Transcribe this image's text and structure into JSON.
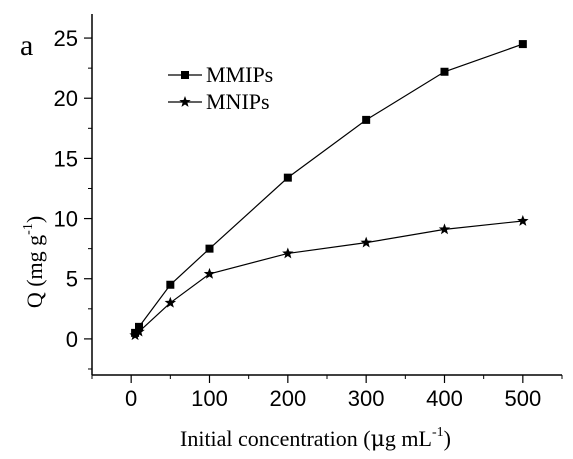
{
  "chart_data": {
    "type": "line",
    "panel_label": "a",
    "xlabel_main": "Initial concentration (",
    "xlabel_unit_mu": "μ",
    "xlabel_unit_rest": "g mL",
    "xlabel_unit_sup": "-1",
    "xlabel_close": ")",
    "ylabel_main": "Q (mg g",
    "ylabel_sup": "-1",
    "ylabel_close": ")",
    "xlim": [
      -50,
      550
    ],
    "ylim": [
      -3,
      27
    ],
    "xticks": [
      0,
      100,
      200,
      300,
      400,
      500
    ],
    "yticks": [
      0,
      5,
      10,
      15,
      20,
      25
    ],
    "legend_position": "top-left",
    "series": [
      {
        "name": "MMIPs",
        "marker": "square",
        "color": "#000000",
        "x": [
          5,
          10,
          50,
          100,
          200,
          300,
          400,
          500
        ],
        "y": [
          0.5,
          1.0,
          4.5,
          7.5,
          13.4,
          18.2,
          22.2,
          24.5
        ]
      },
      {
        "name": "MNIPs",
        "marker": "star",
        "color": "#000000",
        "x": [
          5,
          10,
          50,
          100,
          200,
          300,
          400,
          500
        ],
        "y": [
          0.3,
          0.6,
          3.0,
          5.4,
          7.1,
          8.0,
          9.1,
          9.8
        ]
      }
    ]
  }
}
